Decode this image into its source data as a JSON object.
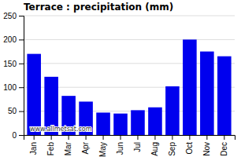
{
  "chart_data": {
    "type": "bar",
    "title": "Terrace : precipitation (mm)",
    "categories": [
      "Jan",
      "Feb",
      "Mar",
      "Apr",
      "May",
      "Jun",
      "Jul",
      "Aug",
      "Sep",
      "Oct",
      "Nov",
      "Dec"
    ],
    "values": [
      170,
      122,
      82,
      70,
      47,
      45,
      52,
      58,
      102,
      200,
      175,
      165
    ],
    "color": "#0000EE",
    "ylim": [
      0,
      250
    ],
    "yticks": [
      0,
      50,
      100,
      150,
      200,
      250
    ],
    "grid": true,
    "annotations": [
      "www.allmetsat.com"
    ]
  }
}
